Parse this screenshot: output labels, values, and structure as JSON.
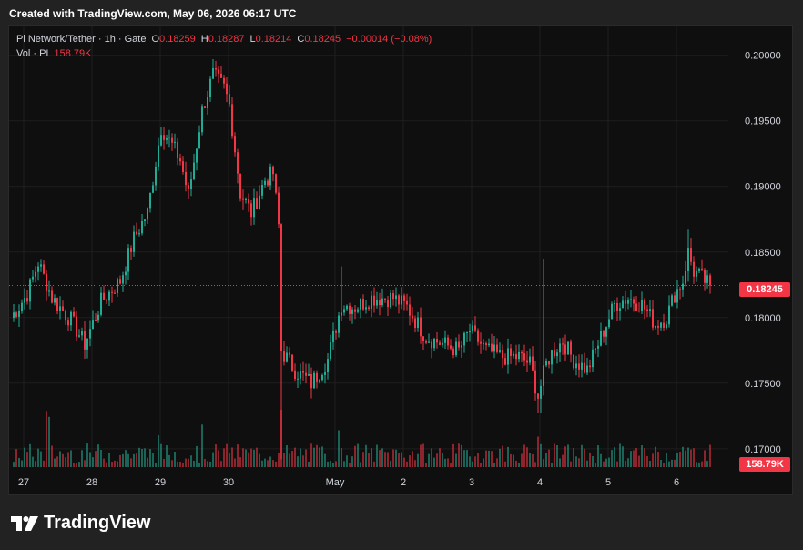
{
  "header": {
    "created_text": "Created with TradingView.com, May 06, 2026 06:17 UTC"
  },
  "legend": {
    "symbol": "Pi Network/Tether · 1h · Gate",
    "open_label": "O",
    "open_value": "0.18259",
    "high_label": "H",
    "high_value": "0.18287",
    "low_label": "L",
    "low_value": "0.18214",
    "close_label": "C",
    "close_value": "0.18245",
    "change": "−0.00014 (−0.08%)",
    "vol_label": "Vol · PI",
    "vol_value": "158.79K"
  },
  "badges": {
    "last_price": "0.18245",
    "last_volume": "158.79K"
  },
  "brand": {
    "name": "TradingView",
    "logo_icon": "tradingview-logo-icon"
  },
  "colors": {
    "up": "#22ab94",
    "down": "#f23645",
    "background": "#0f0f0f",
    "grid": "#1f1f1f",
    "axis_text": "#d1d4dc"
  },
  "chart_data": {
    "type": "candlestick",
    "interval": "1h",
    "y_ticks": [
      "0.20000",
      "0.19500",
      "0.19000",
      "0.18500",
      "0.18000",
      "0.17500",
      "0.17000"
    ],
    "x_ticks": [
      "27",
      "28",
      "29",
      "30",
      "May",
      "2",
      "3",
      "4",
      "5",
      "6"
    ],
    "ylim": [
      0.1686,
      0.2022
    ],
    "last_price": 0.18245,
    "anchors": [
      [
        0,
        0.18
      ],
      [
        6,
        0.1818
      ],
      [
        10,
        0.1842
      ],
      [
        15,
        0.1815
      ],
      [
        22,
        0.1798
      ],
      [
        27,
        0.178
      ],
      [
        33,
        0.1812
      ],
      [
        40,
        0.1828
      ],
      [
        45,
        0.186
      ],
      [
        50,
        0.188
      ],
      [
        55,
        0.1945
      ],
      [
        58,
        0.1935
      ],
      [
        62,
        0.192
      ],
      [
        65,
        0.1893
      ],
      [
        70,
        0.1958
      ],
      [
        74,
        0.1985
      ],
      [
        78,
        0.1975
      ],
      [
        80,
        0.1962
      ],
      [
        84,
        0.1895
      ],
      [
        88,
        0.188
      ],
      [
        93,
        0.1905
      ],
      [
        96,
        0.191
      ],
      [
        98,
        0.187
      ],
      [
        99,
        0.1775
      ],
      [
        104,
        0.176
      ],
      [
        110,
        0.175
      ],
      [
        116,
        0.1768
      ],
      [
        121,
        0.181
      ],
      [
        126,
        0.1808
      ],
      [
        132,
        0.1815
      ],
      [
        140,
        0.1815
      ],
      [
        145,
        0.1808
      ],
      [
        152,
        0.1785
      ],
      [
        158,
        0.178
      ],
      [
        164,
        0.1775
      ],
      [
        168,
        0.179
      ],
      [
        174,
        0.1775
      ],
      [
        180,
        0.177
      ],
      [
        186,
        0.177
      ],
      [
        190,
        0.1765
      ],
      [
        193,
        0.174
      ],
      [
        196,
        0.1765
      ],
      [
        198,
        0.1773
      ],
      [
        202,
        0.1782
      ],
      [
        206,
        0.1768
      ],
      [
        211,
        0.176
      ],
      [
        216,
        0.1785
      ],
      [
        221,
        0.181
      ],
      [
        226,
        0.1815
      ],
      [
        231,
        0.181
      ],
      [
        236,
        0.1795
      ],
      [
        240,
        0.18
      ],
      [
        243,
        0.1818
      ],
      [
        246,
        0.1828
      ],
      [
        248,
        0.185
      ],
      [
        250,
        0.1835
      ],
      [
        252,
        0.1832
      ],
      [
        255,
        0.1826
      ],
      [
        256,
        0.18245
      ]
    ]
  }
}
